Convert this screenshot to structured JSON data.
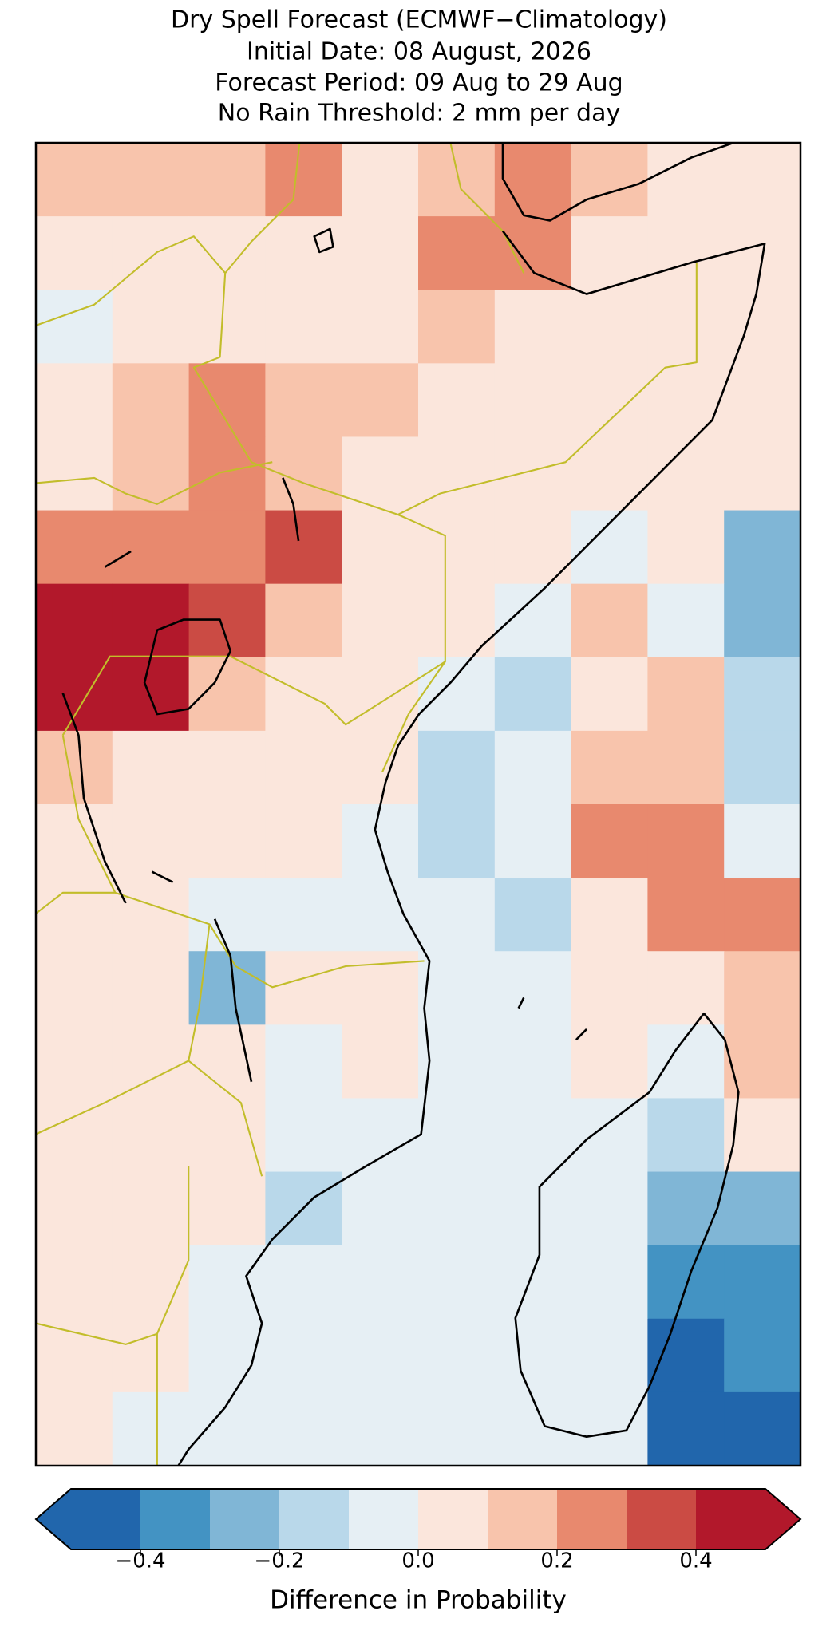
{
  "chart_data": {
    "type": "heatmap",
    "title": [
      "Dry Spell Forecast (ECMWF−Climatology)",
      "Initial Date: 08 August, 2026",
      "Forecast Period: 09 Aug to 29 Aug",
      "No Rain Threshold: 2 mm per day"
    ],
    "values": [
      [
        0.15,
        0.1,
        0.15,
        0.25,
        0.05,
        0.15,
        0.25,
        0.15,
        0.05,
        0.05
      ],
      [
        0.05,
        0.05,
        0.05,
        0.05,
        0.05,
        0.25,
        0.25,
        0.05,
        0.05,
        0.05
      ],
      [
        -0.05,
        0.05,
        0.05,
        0.05,
        0.05,
        0.15,
        0.05,
        0.05,
        0.05,
        0.05
      ],
      [
        0.05,
        0.15,
        0.2,
        0.15,
        0.1,
        0.05,
        0.05,
        0.05,
        0.05,
        0.05
      ],
      [
        0.05,
        0.15,
        0.25,
        0.1,
        0.05,
        0.05,
        0.05,
        0.05,
        0.05,
        0.05
      ],
      [
        0.25,
        0.25,
        0.25,
        0.35,
        0.05,
        0.05,
        0.05,
        -0.05,
        0.05,
        -0.25
      ],
      [
        0.45,
        0.45,
        0.35,
        0.15,
        0.05,
        0.05,
        -0.05,
        0.15,
        -0.05,
        -0.25
      ],
      [
        0.45,
        0.45,
        0.15,
        0.05,
        0.05,
        -0.05,
        -0.15,
        0.05,
        0.1,
        -0.15
      ],
      [
        0.15,
        0.05,
        0.05,
        0.05,
        0.05,
        -0.15,
        -0.05,
        0.15,
        0.15,
        -0.15
      ],
      [
        0.05,
        0.05,
        0.05,
        0.05,
        -0.05,
        -0.15,
        -0.05,
        0.25,
        0.25,
        -0.05
      ],
      [
        0.05,
        0.05,
        -0.05,
        -0.05,
        -0.05,
        -0.05,
        -0.15,
        0.05,
        0.25,
        0.25
      ],
      [
        0.05,
        0.05,
        -0.25,
        0.05,
        0.05,
        -0.05,
        -0.05,
        0.05,
        0.05,
        0.15
      ],
      [
        0.05,
        0.05,
        0.05,
        -0.05,
        0.05,
        -0.05,
        -0.05,
        0.05,
        -0.05,
        0.15
      ],
      [
        0.05,
        0.05,
        0.05,
        -0.05,
        -0.05,
        -0.05,
        -0.05,
        -0.05,
        -0.15,
        0.05
      ],
      [
        0.05,
        0.05,
        0.05,
        -0.15,
        -0.05,
        -0.05,
        -0.05,
        -0.05,
        -0.25,
        -0.25
      ],
      [
        0.05,
        0.05,
        -0.05,
        -0.05,
        -0.05,
        -0.05,
        -0.05,
        -0.05,
        -0.35,
        -0.35
      ],
      [
        0.05,
        0.05,
        -0.05,
        -0.05,
        -0.05,
        -0.05,
        -0.05,
        -0.05,
        -0.45,
        -0.35
      ],
      [
        0.05,
        -0.05,
        -0.05,
        -0.05,
        -0.05,
        -0.05,
        -0.05,
        -0.05,
        -0.45,
        -0.45
      ]
    ],
    "colorbar": {
      "boundaries": [
        -0.5,
        -0.4,
        -0.3,
        -0.2,
        -0.1,
        0,
        0.1,
        0.2,
        0.3,
        0.4,
        0.5
      ],
      "colors": [
        "#2166ac",
        "#4393c3",
        "#80b6d6",
        "#b9d8ea",
        "#e6eff4",
        "#fbe6dc",
        "#f8c4ac",
        "#e8896e",
        "#cb4b44",
        "#b2182b"
      ],
      "extend": "both",
      "ticks": [
        {
          "value": -0.4,
          "label": "−0.4"
        },
        {
          "value": -0.2,
          "label": "−0.2"
        },
        {
          "value": 0,
          "label": "0.0"
        },
        0.2,
        0.4
      ],
      "label": "Difference in Probability"
    }
  }
}
